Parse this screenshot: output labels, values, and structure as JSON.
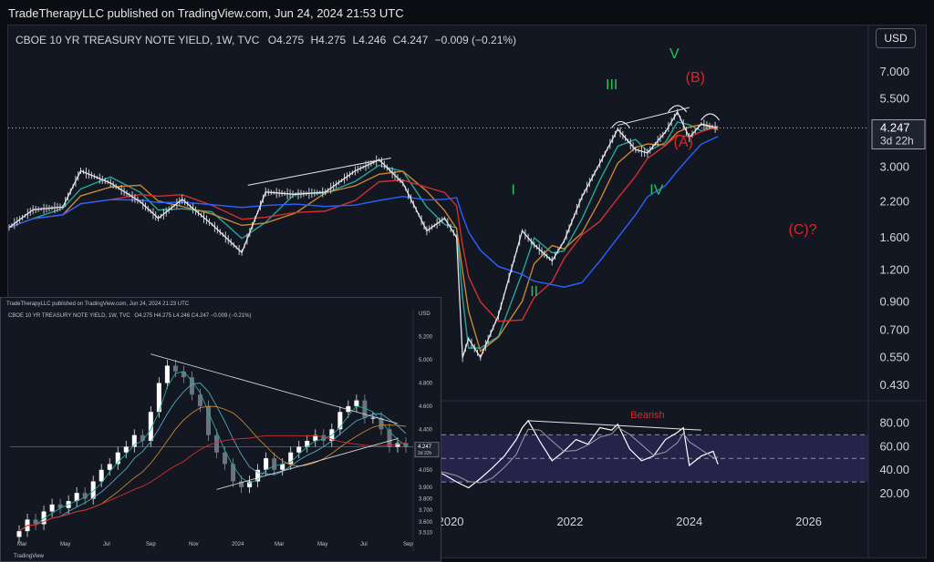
{
  "publisher_line": "TradeTherapyLLC published on TradingView.com, Jun 24, 2024 21:53 UTC",
  "header": {
    "symbol": "CBOE 10 YR TREASURY NOTE YIELD, 1W, TVC",
    "o_label": "O",
    "o": "4.275",
    "h_label": "H",
    "h": "4.275",
    "l_label": "L",
    "l": "4.246",
    "c_label": "C",
    "c": "4.247",
    "change": "−0.009 (−0.21%)"
  },
  "currency_button": "USD",
  "price_tag": {
    "value": "4.247",
    "countdown": "3d 22h"
  },
  "colors": {
    "background": "#131722",
    "wave_green": "#22c55e",
    "wave_red": "#e0242a",
    "ma_blue": "#2962ff",
    "ma_red": "#d32f2f",
    "ma_orange": "#c9862f",
    "ma_teal": "#26a69a",
    "rsi_line": "#ffffff",
    "rsi_band": "#2a2550"
  },
  "chart_data": [
    {
      "type": "line",
      "id": "main",
      "scale": "log",
      "y_ticks": [
        "7.000",
        "5.500",
        "4.247",
        "3.000",
        "2.200",
        "1.600",
        "1.200",
        "0.900",
        "0.700",
        "0.550",
        "0.430"
      ],
      "y_tick_values": [
        7.0,
        5.5,
        4.247,
        3.0,
        2.2,
        1.6,
        1.2,
        0.9,
        0.7,
        0.55,
        0.43
      ],
      "x_ticks": [
        "2020",
        "2022",
        "2024",
        "2026"
      ],
      "x_tick_values": [
        2020,
        2022,
        2024,
        2026
      ],
      "xlim": [
        2012.6,
        2027.0
      ],
      "ylim": [
        0.38,
        8.5
      ],
      "series": [
        {
          "x": [
            2012.6,
            2013.0,
            2013.5,
            2013.8,
            2014.3,
            2014.8,
            2015.1,
            2015.5,
            2016.0,
            2016.5,
            2016.9,
            2017.4,
            2017.9,
            2018.4,
            2018.8,
            2019.2,
            2019.6,
            2019.9,
            2020.1,
            2020.2,
            2020.3,
            2020.5,
            2020.8,
            2021.2,
            2021.4,
            2021.7,
            2021.9,
            2022.2,
            2022.5,
            2022.8,
            2023.1,
            2023.3,
            2023.6,
            2023.8,
            2024.0,
            2024.2,
            2024.48
          ],
          "y": [
            1.75,
            2.05,
            2.1,
            2.9,
            2.6,
            2.2,
            1.9,
            2.25,
            1.8,
            1.4,
            2.4,
            2.35,
            2.4,
            2.9,
            3.2,
            2.6,
            1.7,
            1.9,
            1.6,
            0.55,
            0.65,
            0.55,
            0.8,
            1.7,
            1.5,
            1.3,
            1.55,
            2.3,
            3.1,
            4.2,
            3.5,
            3.4,
            4.1,
            4.9,
            3.9,
            4.4,
            4.247
          ]
        }
      ],
      "trendlines": [
        {
          "x": [
            2016.6,
            2019.0
          ],
          "y": [
            2.55,
            3.25
          ]
        },
        {
          "x": [
            2022.8,
            2024.0
          ],
          "y": [
            4.35,
            5.1
          ]
        }
      ],
      "wave_labels": {
        "green": [
          "I",
          "II",
          "III",
          "IV",
          "V"
        ],
        "red": [
          "(A)",
          "(B)",
          "(C)?"
        ]
      }
    },
    {
      "type": "line",
      "id": "rsi",
      "y_ticks": [
        "80.00",
        "60.00",
        "40.00",
        "20.00"
      ],
      "y_tick_values": [
        80,
        60,
        40,
        20
      ],
      "band": [
        30,
        70
      ],
      "midline": 50,
      "ylim": [
        10,
        95
      ],
      "annotation": "Bearish",
      "divergence_line": {
        "x": [
          2021.3,
          2024.2
        ],
        "y": [
          82,
          74
        ]
      },
      "series": [
        {
          "x": [
            2019.7,
            2019.9,
            2020.1,
            2020.3,
            2020.5,
            2020.7,
            2020.9,
            2021.1,
            2021.2,
            2021.3,
            2021.5,
            2021.7,
            2021.9,
            2022.1,
            2022.3,
            2022.5,
            2022.7,
            2022.8,
            2023.0,
            2023.2,
            2023.4,
            2023.6,
            2023.8,
            2023.9,
            2024.0,
            2024.2,
            2024.4,
            2024.48
          ],
          "y": [
            40,
            36,
            30,
            25,
            33,
            42,
            52,
            66,
            76,
            82,
            64,
            48,
            56,
            66,
            62,
            76,
            74,
            79,
            58,
            48,
            52,
            66,
            72,
            76,
            44,
            52,
            56,
            45
          ]
        }
      ]
    },
    {
      "type": "bar",
      "id": "inset",
      "title": "CBOE 10 YR TREASURY NOTE YIELD, 1W, TVC",
      "publisher": "TradeTherapyLLC published on TradingView.com, Jun 24, 2024 21:23 UTC",
      "header_values": "O4.275 H4.275 L4.246 C4.247 −0.009 (−0.21%)",
      "currency": "USD",
      "y_ticks": [
        "5.200",
        "5.000",
        "4.800",
        "4.600",
        "4.400",
        "4.050",
        "3.900",
        "3.800",
        "3.700",
        "3.600",
        "3.510"
      ],
      "y_tick_values": [
        5.2,
        5.0,
        4.8,
        4.6,
        4.4,
        4.05,
        3.9,
        3.8,
        3.7,
        3.6,
        3.51
      ],
      "x_ticks": [
        "Mar",
        "May",
        "Jul",
        "Sep",
        "Nov",
        "2024",
        "Mar",
        "May",
        "Jul",
        "Sep"
      ],
      "price_tag": "4.247",
      "countdown": "3d 22h",
      "closes": [
        3.52,
        3.62,
        3.58,
        3.69,
        3.75,
        3.72,
        3.78,
        3.85,
        3.8,
        3.95,
        4.05,
        4.1,
        4.2,
        4.25,
        4.35,
        4.3,
        4.55,
        4.8,
        4.95,
        4.9,
        4.85,
        4.7,
        4.6,
        4.35,
        4.2,
        4.1,
        3.95,
        3.9,
        3.95,
        4.05,
        4.15,
        4.05,
        4.1,
        4.2,
        4.25,
        4.3,
        4.35,
        4.3,
        4.4,
        4.55,
        4.6,
        4.65,
        4.5,
        4.5,
        4.4,
        4.25,
        4.28,
        4.247
      ],
      "trendlines": [
        {
          "from_index": 16,
          "to_index": 46,
          "from": 5.05,
          "to": 4.45
        },
        {
          "from_index": 24,
          "to_index": 46,
          "from": 3.88,
          "to": 4.32
        }
      ],
      "brand": "TradingView"
    }
  ]
}
